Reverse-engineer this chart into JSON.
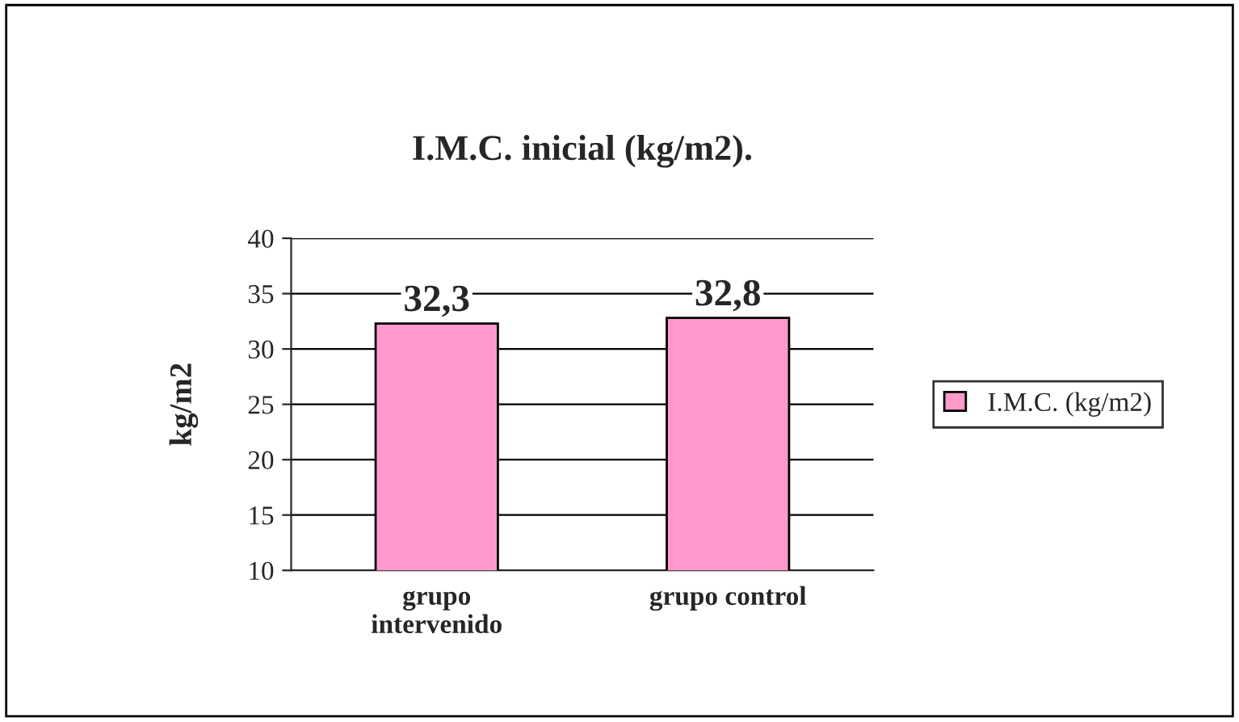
{
  "chart_data": {
    "type": "bar",
    "title": "I.M.C. inicial (kg/m2).",
    "ylabel": "kg/m2",
    "categories": [
      "grupo\nintervenido",
      "grupo control"
    ],
    "series": [
      {
        "name": "I.M.C. (kg/m2)",
        "color": "#ff99cc",
        "values": [
          32.3,
          32.8
        ]
      }
    ],
    "value_labels": [
      "32,3",
      "32,8"
    ],
    "ylim": [
      10,
      40
    ],
    "yticks": [
      10,
      15,
      20,
      25,
      30,
      35,
      40
    ],
    "grid": "y",
    "legend": "right"
  }
}
